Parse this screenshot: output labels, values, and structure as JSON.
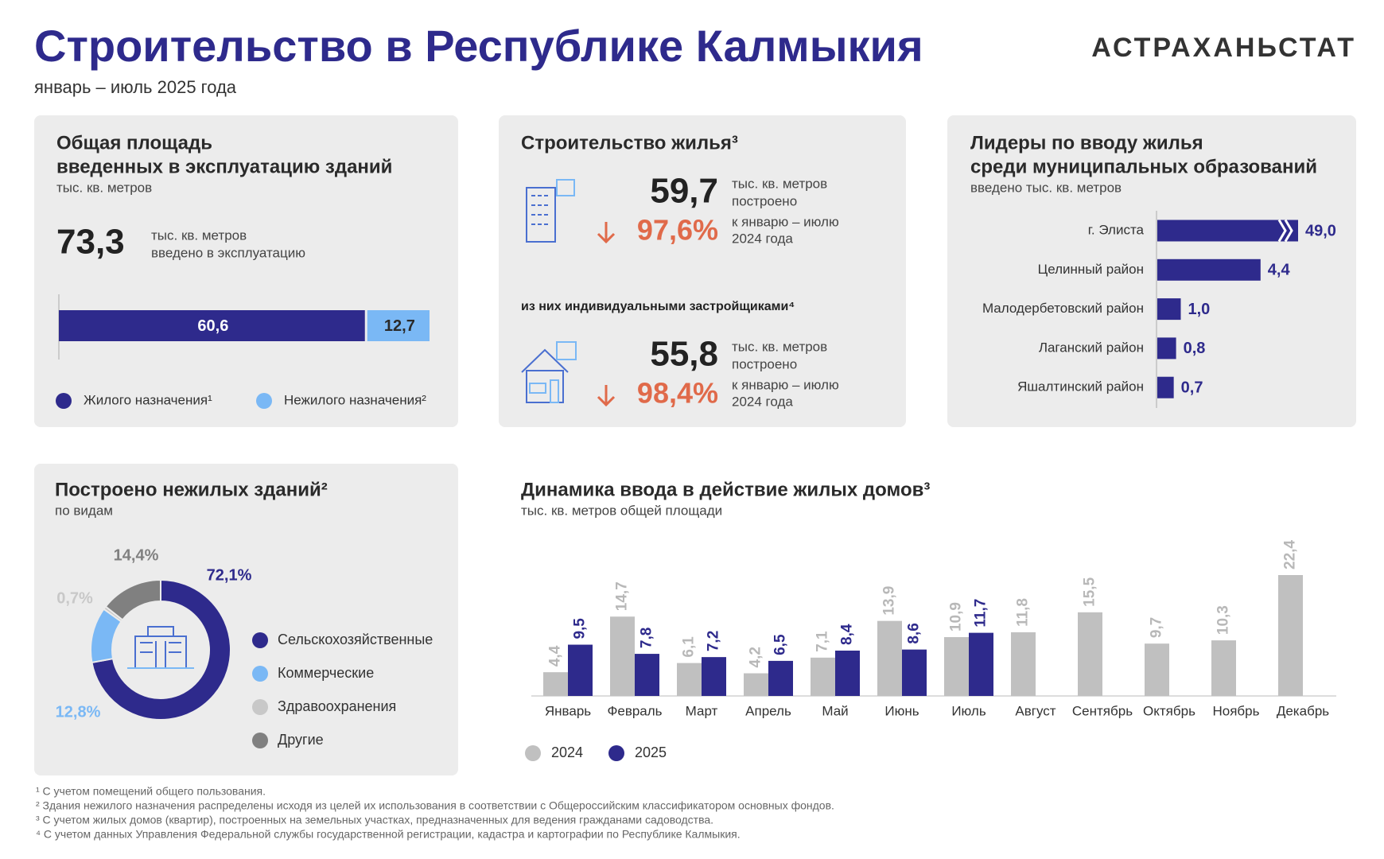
{
  "header": {
    "title": "Строительство в Республике Калмыкия",
    "subtitle": "январь – июль 2025 года",
    "logo": "АСТРАХАНЬСТАТ"
  },
  "total_area": {
    "title_lines": [
      "Общая площадь",
      "введенных в эксплуатацию зданий"
    ],
    "unit": "тыс. кв. метров",
    "value": "73,3",
    "value_note_lines": [
      "тыс. кв. метров",
      "введено в эксплуатацию"
    ]
  },
  "housing": {
    "title": "Строительство жилья³",
    "total": {
      "value": "59,7",
      "unit_lines": [
        "тыс. кв. метров",
        "построено"
      ],
      "change": "97,6%",
      "compare_lines": [
        "к январю – июлю",
        "2024 года"
      ]
    },
    "individual_title": "из них индивидуальными застройщиками⁴",
    "individual": {
      "value": "55,8",
      "unit_lines": [
        "тыс. кв. метров",
        "построено"
      ],
      "change": "98,4%",
      "compare_lines": [
        "к январю – июлю",
        "2024 года"
      ]
    }
  },
  "footnotes": [
    "¹ С учетом помещений общего пользования.",
    "² Здания нежилого назначения распределены исходя из целей их использования в соответствии с Общероссийским классификатором основных фондов.",
    "³ С учетом жилых домов (квартир), построенных на земельных участках, предназначенных для ведения гражданами садоводства.",
    "⁴ С учетом данных Управления Федеральной службы государственной регистрации, кадастра и картографии по Республике Калмыкия."
  ],
  "chart_data": [
    {
      "type": "stacked_bar",
      "series": [
        {
          "name": "Жилого назначения¹",
          "color": "#2e2a8c",
          "values": [
            60.6
          ],
          "value_labels": [
            "60,6"
          ]
        },
        {
          "name": "Нежилого назначения²",
          "color": "#7ab8f5",
          "values": [
            12.7
          ],
          "value_labels": [
            "12,7"
          ]
        }
      ]
    },
    {
      "type": "hbar",
      "title_lines": [
        "Лидеры по вводу жилья",
        "среди муниципальных образований"
      ],
      "subtitle": "введено тыс. кв. метров",
      "categories": [
        "г. Элиста",
        "Целинный район",
        "Малодербетовский район",
        "Лаганский район",
        "Яшалтинский район"
      ],
      "values": [
        49.0,
        4.4,
        1.0,
        0.8,
        0.7
      ],
      "value_labels": [
        "49,0",
        "4,4",
        "1,0",
        "0,8",
        "0,7"
      ],
      "color": "#2e2a8c"
    },
    {
      "type": "donut",
      "title": "Построено нежилых зданий²",
      "subtitle": "по видам",
      "categories": [
        "Сельскохозяйственные",
        "Коммерческие",
        "Здравоохранения",
        "Другие"
      ],
      "values": [
        72.1,
        12.8,
        0.7,
        14.4
      ],
      "value_labels": [
        "72,1%",
        "12,8%",
        "0,7%",
        "14,4%"
      ],
      "colors": [
        "#2e2a8c",
        "#7ab8f5",
        "#c8c8c8",
        "#808080"
      ]
    },
    {
      "type": "bar",
      "title": "Динамика ввода в действие жилых домов³",
      "subtitle": "тыс. кв. метров общей площади",
      "categories": [
        "Январь",
        "Февраль",
        "Март",
        "Апрель",
        "Май",
        "Июнь",
        "Июль",
        "Август",
        "Сентябрь",
        "Октябрь",
        "Ноябрь",
        "Декабрь"
      ],
      "series": [
        {
          "name": "2024",
          "color": "#c0c0c0",
          "values": [
            4.4,
            14.7,
            6.1,
            4.2,
            7.1,
            13.9,
            10.9,
            11.8,
            15.5,
            9.7,
            10.3,
            22.4
          ],
          "value_labels": [
            "4,4",
            "14,7",
            "6,1",
            "4,2",
            "7,1",
            "13,9",
            "10,9",
            "11,8",
            "15,5",
            "9,7",
            "10,3",
            "22,4"
          ]
        },
        {
          "name": "2025",
          "color": "#2e2a8c",
          "values": [
            9.5,
            7.8,
            7.2,
            6.5,
            8.4,
            8.6,
            11.7,
            null,
            null,
            null,
            null,
            null
          ],
          "value_labels": [
            "9,5",
            "7,8",
            "7,2",
            "6,5",
            "8,4",
            "8,6",
            "11,7",
            null,
            null,
            null,
            null,
            null
          ]
        }
      ]
    }
  ]
}
